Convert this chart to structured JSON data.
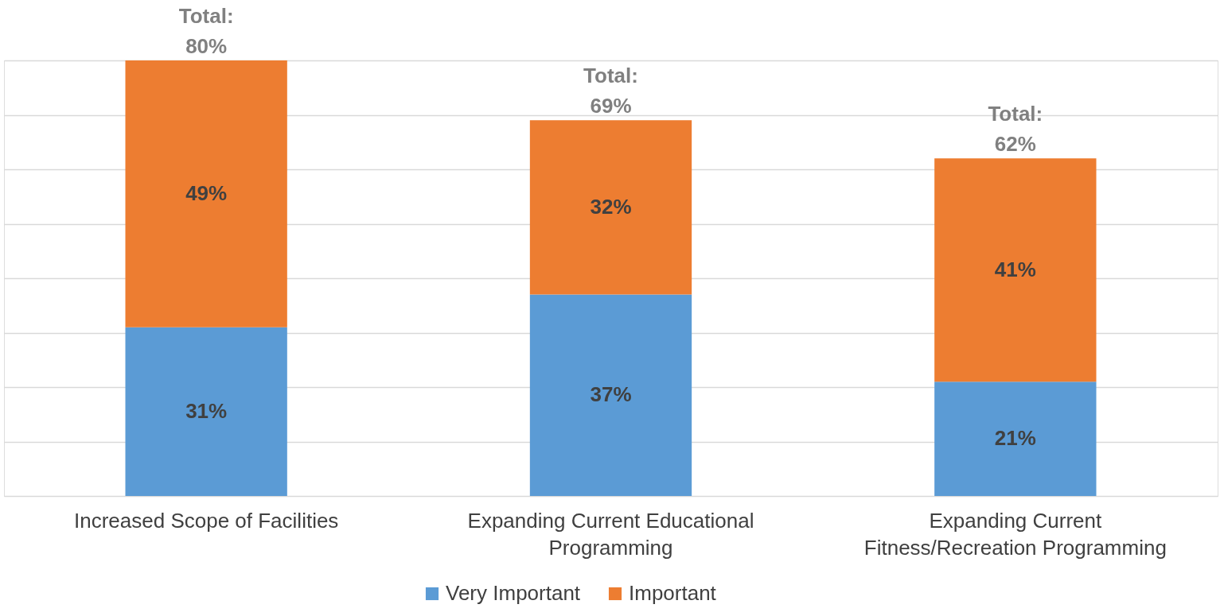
{
  "chart_data": {
    "type": "bar",
    "stacked": true,
    "categories": [
      "Increased Scope of Facilities",
      "Expanding Current Educational Programming",
      "Expanding Current Fitness/Recreation Programming"
    ],
    "series": [
      {
        "name": "Very Important",
        "color": "#5b9bd5",
        "values": [
          31,
          37,
          21
        ],
        "value_labels": [
          "31%",
          "37%",
          "21%"
        ]
      },
      {
        "name": "Important",
        "color": "#ed7d31",
        "values": [
          49,
          32,
          41
        ],
        "value_labels": [
          "49%",
          "32%",
          "41%"
        ]
      }
    ],
    "totals": [
      "Total:\n80%",
      "Total:\n69%",
      "Total:\n62%"
    ],
    "ylim": [
      0,
      80
    ],
    "yticks": [
      {
        "value": 0,
        "label": null
      },
      {
        "value": 10,
        "label": null
      },
      {
        "value": 20,
        "label": null
      },
      {
        "value": 30,
        "label": null
      },
      {
        "value": 40,
        "label": null
      },
      {
        "value": 50,
        "label": null
      },
      {
        "value": 60,
        "label": null
      },
      {
        "value": 70,
        "label": null
      },
      {
        "value": 80,
        "label": null
      }
    ],
    "grid": "y",
    "tick_labels": "x",
    "legend": "bottom"
  }
}
